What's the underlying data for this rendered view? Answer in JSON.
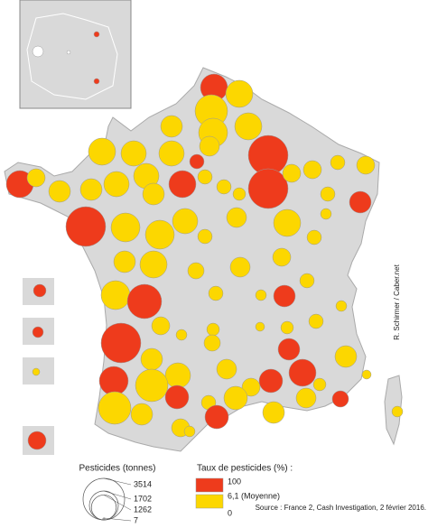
{
  "credit": "R. Schirmer / Caber.net",
  "source": "Source : France 2, Cash Investigation, 2 février 2016.",
  "size_legend": {
    "title": "Pesticides (tonnes)",
    "values": [
      3514,
      1702,
      1262,
      7
    ]
  },
  "color_legend": {
    "title": "Taux de pesticides (%) :",
    "items": [
      {
        "label": "100",
        "color": "#ee3b1c"
      },
      {
        "label": "6,1 (Moyenne)",
        "color": "#fcd700"
      }
    ],
    "bottom_label": "0"
  }
}
